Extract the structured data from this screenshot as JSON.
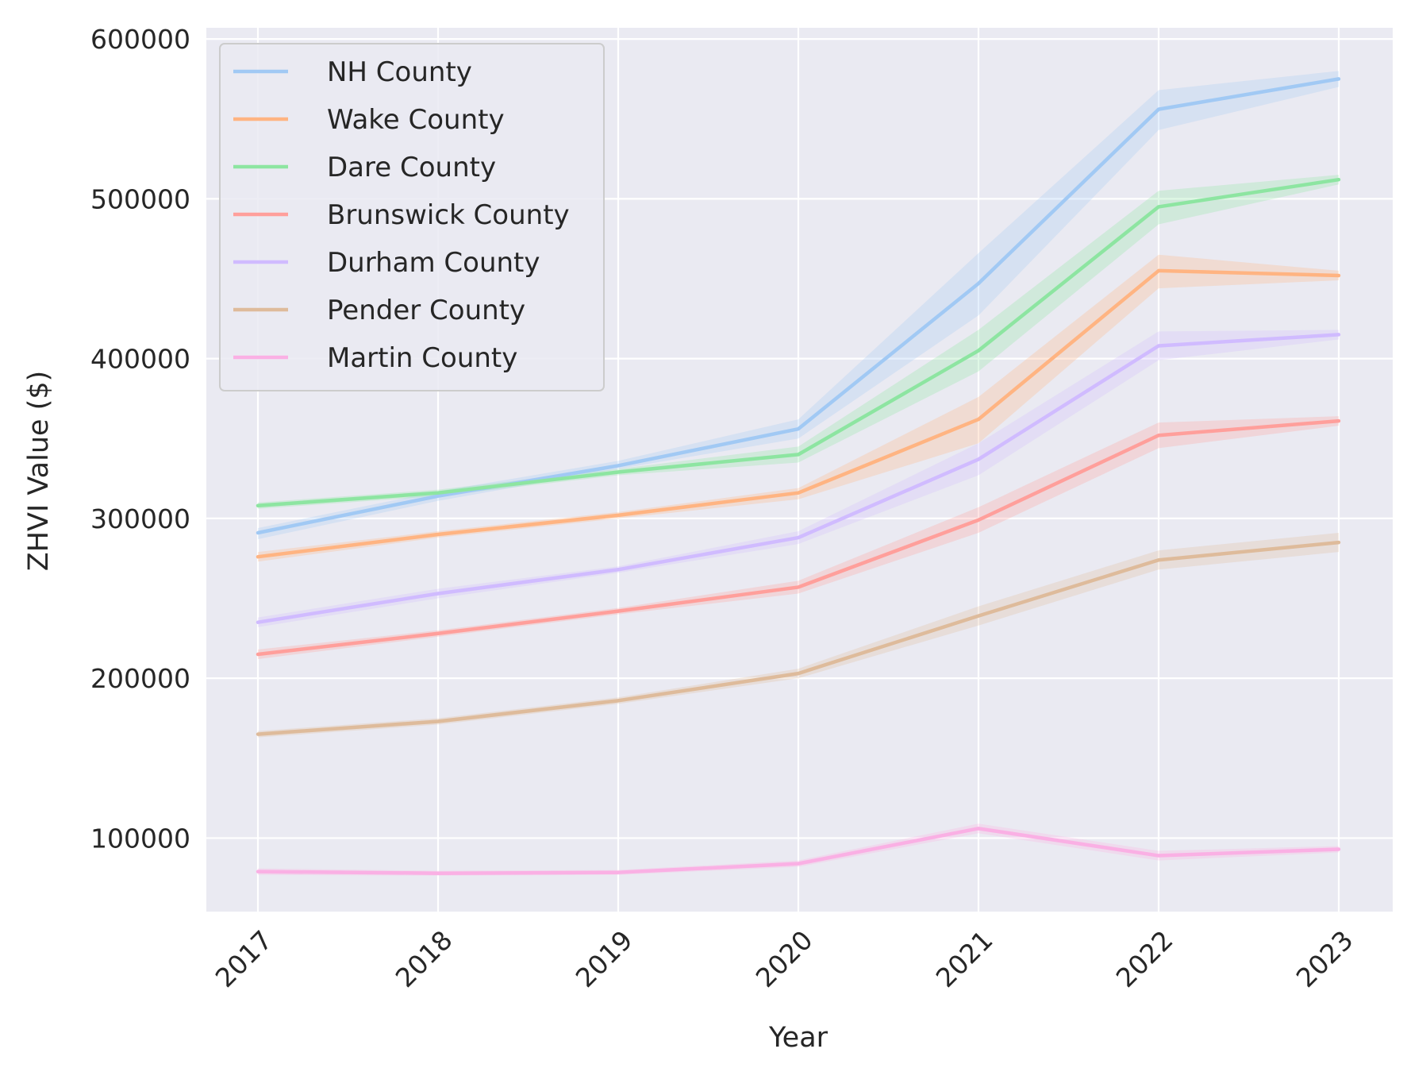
{
  "chart_data": {
    "type": "line",
    "title": "",
    "xlabel": "Year",
    "ylabel": "ZHVI Value ($)",
    "x": [
      2017,
      2018,
      2019,
      2020,
      2021,
      2022,
      2023
    ],
    "x_tick_labels": [
      "2017",
      "2018",
      "2019",
      "2020",
      "2021",
      "2022",
      "2023"
    ],
    "y_ticks": [
      100000,
      200000,
      300000,
      400000,
      500000,
      600000
    ],
    "y_tick_labels": [
      "100000",
      "200000",
      "300000",
      "400000",
      "500000",
      "600000"
    ],
    "ylim": [
      54000,
      607000
    ],
    "grid": true,
    "legend_position": "top-left",
    "series": [
      {
        "name": "NH County",
        "color": "#a1c9f4",
        "values": [
          291000,
          314000,
          333000,
          356000,
          447000,
          556000,
          575000
        ],
        "lower": [
          287000,
          311000,
          331000,
          350000,
          427000,
          543000,
          570000
        ],
        "upper": [
          294000,
          317000,
          336000,
          362000,
          466000,
          568000,
          580000
        ]
      },
      {
        "name": "Wake County",
        "color": "#ffb482",
        "values": [
          276000,
          290000,
          302000,
          316000,
          362000,
          455000,
          452000
        ],
        "lower": [
          273000,
          288000,
          300000,
          312000,
          347000,
          444000,
          449000
        ],
        "upper": [
          279000,
          292000,
          304000,
          319000,
          376000,
          465000,
          455000
        ]
      },
      {
        "name": "Dare County",
        "color": "#8de5a1",
        "values": [
          308000,
          316000,
          329000,
          340000,
          405000,
          495000,
          512000
        ],
        "lower": [
          306000,
          314000,
          327000,
          335000,
          392000,
          484000,
          509000
        ],
        "upper": [
          310000,
          318000,
          331000,
          345000,
          418000,
          505000,
          515000
        ]
      },
      {
        "name": "Brunswick County",
        "color": "#ff9f9b",
        "values": [
          215000,
          228000,
          242000,
          257000,
          299000,
          352000,
          361000
        ],
        "lower": [
          212000,
          226000,
          240000,
          253000,
          291000,
          344000,
          358000
        ],
        "upper": [
          218000,
          230000,
          244000,
          261000,
          307000,
          360000,
          364000
        ]
      },
      {
        "name": "Durham County",
        "color": "#d0bbff",
        "values": [
          235000,
          253000,
          268000,
          288000,
          337000,
          408000,
          415000
        ],
        "lower": [
          232000,
          250000,
          266000,
          284000,
          327000,
          399000,
          412000
        ],
        "upper": [
          238000,
          256000,
          270000,
          292000,
          347000,
          417000,
          418000
        ]
      },
      {
        "name": "Pender County",
        "color": "#debb9b",
        "values": [
          165000,
          173000,
          186000,
          203000,
          239000,
          274000,
          285000
        ],
        "lower": [
          163000,
          171000,
          184000,
          200000,
          233000,
          268000,
          279000
        ],
        "upper": [
          167000,
          175000,
          188000,
          206000,
          245000,
          280000,
          291000
        ]
      },
      {
        "name": "Martin County",
        "color": "#fab0e4",
        "values": [
          79000,
          78000,
          78500,
          84000,
          106000,
          89000,
          93000
        ],
        "lower": [
          77000,
          76500,
          77000,
          82000,
          103000,
          86000,
          91000
        ],
        "upper": [
          81000,
          79500,
          80000,
          86000,
          109000,
          92000,
          95000
        ]
      }
    ]
  }
}
